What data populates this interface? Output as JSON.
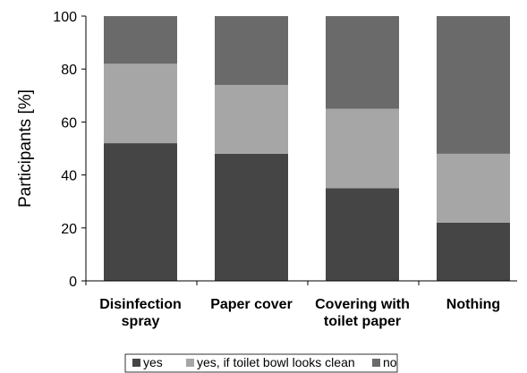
{
  "chart_data": {
    "type": "bar",
    "stacked": true,
    "categories": [
      [
        "Disinfection",
        "spray"
      ],
      [
        "Paper cover"
      ],
      [
        "Covering with",
        "toilet paper"
      ],
      [
        "Nothing"
      ]
    ],
    "series": [
      {
        "name": "yes",
        "values": [
          52,
          48,
          35,
          22
        ],
        "color": "#454545"
      },
      {
        "name": "yes, if toilet bowl looks clean",
        "values": [
          30,
          26,
          30,
          26
        ],
        "color": "#a6a6a6"
      },
      {
        "name": "no",
        "values": [
          18,
          26,
          35,
          52
        ],
        "color": "#6a6a6a"
      }
    ],
    "ylabel": "Participants [%]",
    "ylim": [
      0,
      100
    ],
    "yticks": [
      0,
      20,
      40,
      60,
      80,
      100
    ],
    "grid": false,
    "legend_position": "bottom"
  }
}
